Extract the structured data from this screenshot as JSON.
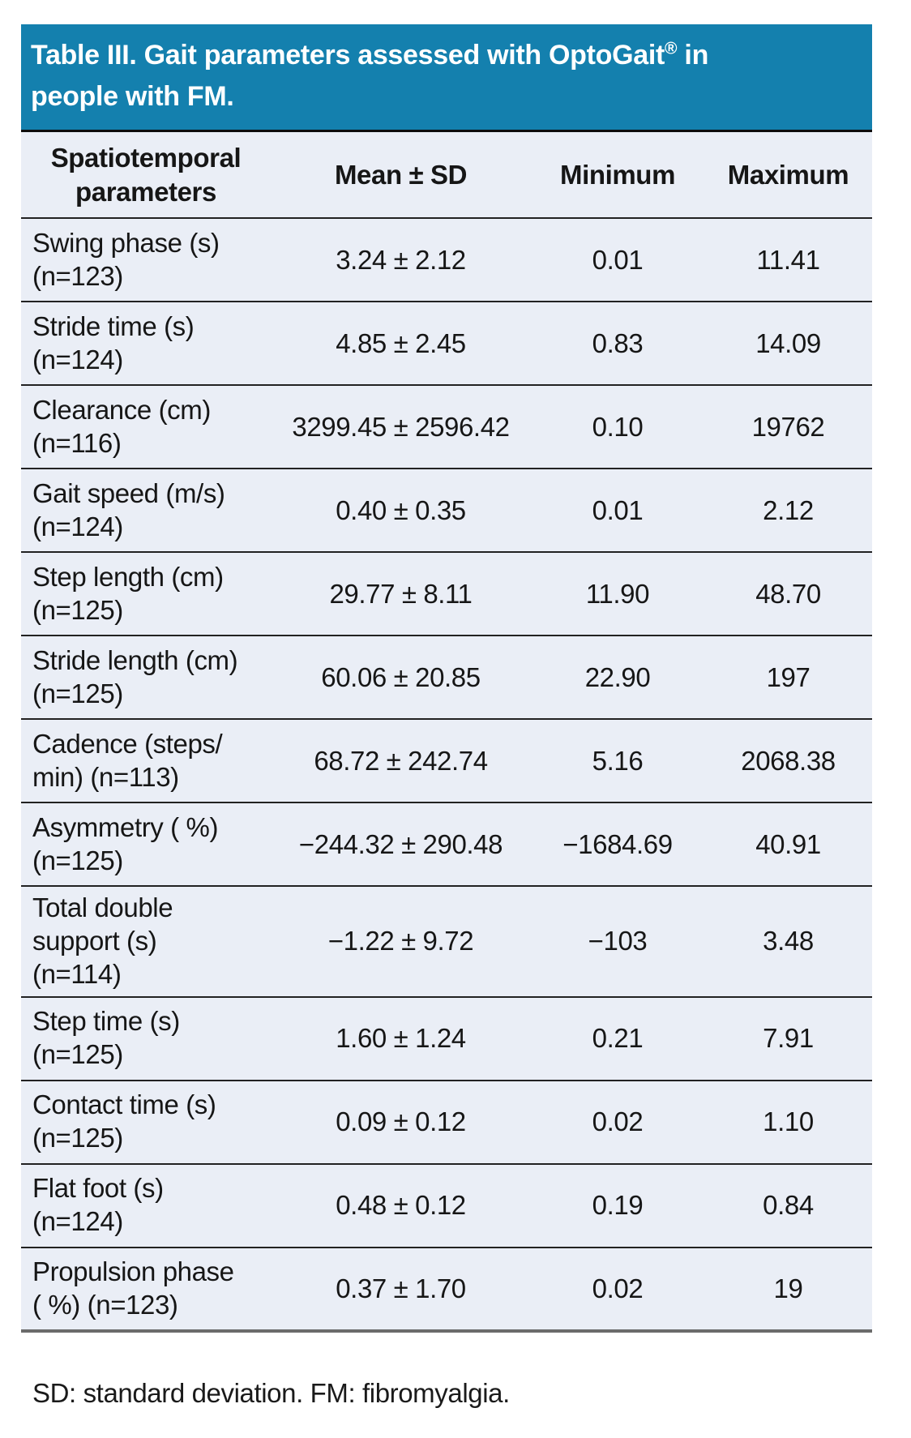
{
  "page": {
    "title": {
      "pre": "Table III. Gait parameters assessed with OptoGait",
      "registered_mark": "®",
      "post": " in\npeople with FM."
    },
    "columns": [
      "Spatiotemporal\nparameters",
      "Mean ± SD",
      "Minimum",
      "Maximum"
    ],
    "rows": [
      {
        "parameter": "Swing phase (s)\n(n=123)",
        "mean_sd": "3.24 ± 2.12",
        "minimum": "0.01",
        "maximum": "11.41"
      },
      {
        "parameter": "Stride time (s)\n(n=124)",
        "mean_sd": "4.85 ± 2.45",
        "minimum": "0.83",
        "maximum": "14.09"
      },
      {
        "parameter": "Clearance (cm)\n(n=116)",
        "mean_sd": "3299.45 ± 2596.42",
        "minimum": "0.10",
        "maximum": "19762"
      },
      {
        "parameter": "Gait speed (m/s)\n(n=124)",
        "mean_sd": "0.40 ± 0.35",
        "minimum": "0.01",
        "maximum": "2.12"
      },
      {
        "parameter": "Step length (cm)\n(n=125)",
        "mean_sd": "29.77 ± 8.11",
        "minimum": "11.90",
        "maximum": "48.70"
      },
      {
        "parameter": "Stride length (cm)\n(n=125)",
        "mean_sd": "60.06 ± 20.85",
        "minimum": "22.90",
        "maximum": "197"
      },
      {
        "parameter": "Cadence (steps/\nmin) (n=113)",
        "mean_sd": "68.72 ± 242.74",
        "minimum": "5.16",
        "maximum": "2068.38"
      },
      {
        "parameter": "Asymmetry ( %)\n(n=125)",
        "mean_sd": "−244.32 ± 290.48",
        "minimum": "−1684.69",
        "maximum": "40.91"
      },
      {
        "parameter": "Total double\nsupport (s)\n(n=114)",
        "mean_sd": "−1.22 ± 9.72",
        "minimum": "−103",
        "maximum": "3.48"
      },
      {
        "parameter": "Step time (s)\n(n=125)",
        "mean_sd": "1.60 ± 1.24",
        "minimum": "0.21",
        "maximum": "7.91"
      },
      {
        "parameter": "Contact time (s)\n(n=125)",
        "mean_sd": "0.09 ± 0.12",
        "minimum": "0.02",
        "maximum": "1.10"
      },
      {
        "parameter": "Flat foot (s)\n(n=124)",
        "mean_sd": "0.48 ± 0.12",
        "minimum": "0.19",
        "maximum": "0.84"
      },
      {
        "parameter": "Propulsion phase\n( %) (n=123)",
        "mean_sd": "0.37 ± 1.70",
        "minimum": "0.02",
        "maximum": "19"
      }
    ],
    "footnote": "SD: standard deviation. FM: fibromyalgia.",
    "colors": {
      "header_blue": "#1480ae",
      "table_background": "#eaeef6",
      "title_text": "#ffffff",
      "body_text": "#161616"
    }
  }
}
